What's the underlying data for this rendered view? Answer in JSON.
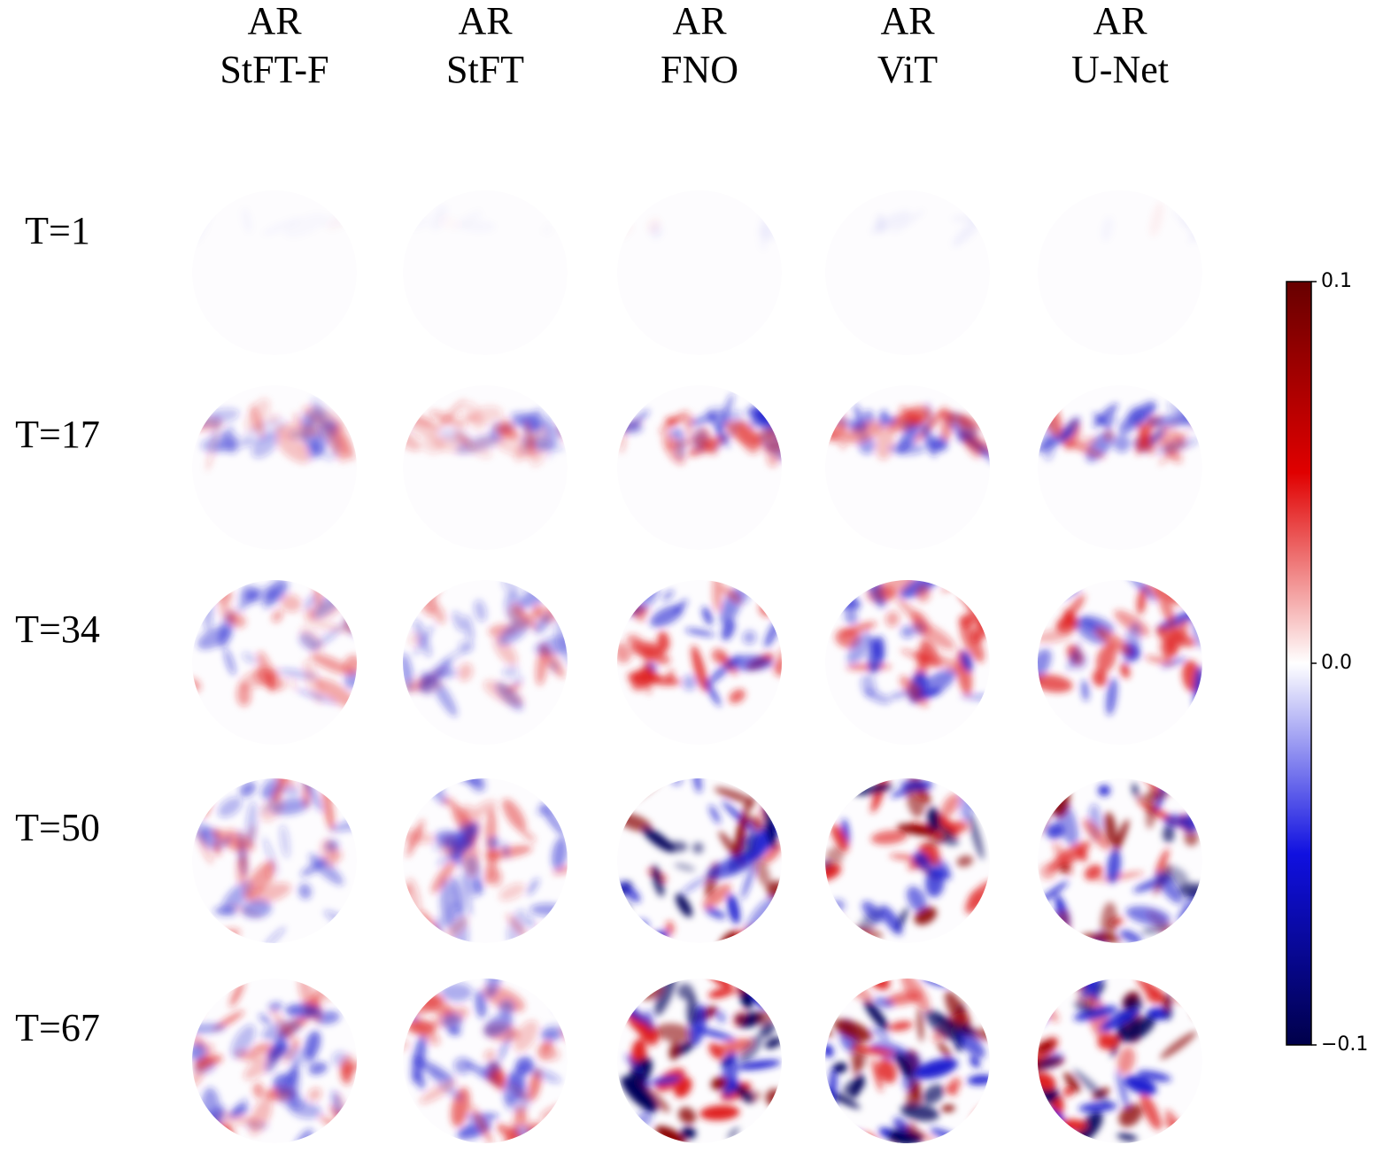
{
  "columns": [
    {
      "line1": "AR",
      "line2": "StFT-F"
    },
    {
      "line1": "AR",
      "line2": "StFT"
    },
    {
      "line1": "AR",
      "line2": "FNO"
    },
    {
      "line1": "AR",
      "line2": "ViT"
    },
    {
      "line1": "AR",
      "line2": "U-Net"
    }
  ],
  "rows": [
    "T=1",
    "T=17",
    "T=34",
    "T=50",
    "T=67"
  ],
  "colorbar": {
    "lim": [
      -0.1,
      0.1
    ],
    "ticks": [
      {
        "value": -0.1,
        "label": "−0.1"
      },
      {
        "value": 0,
        "label": "0.0"
      },
      0.1
    ]
  }
}
